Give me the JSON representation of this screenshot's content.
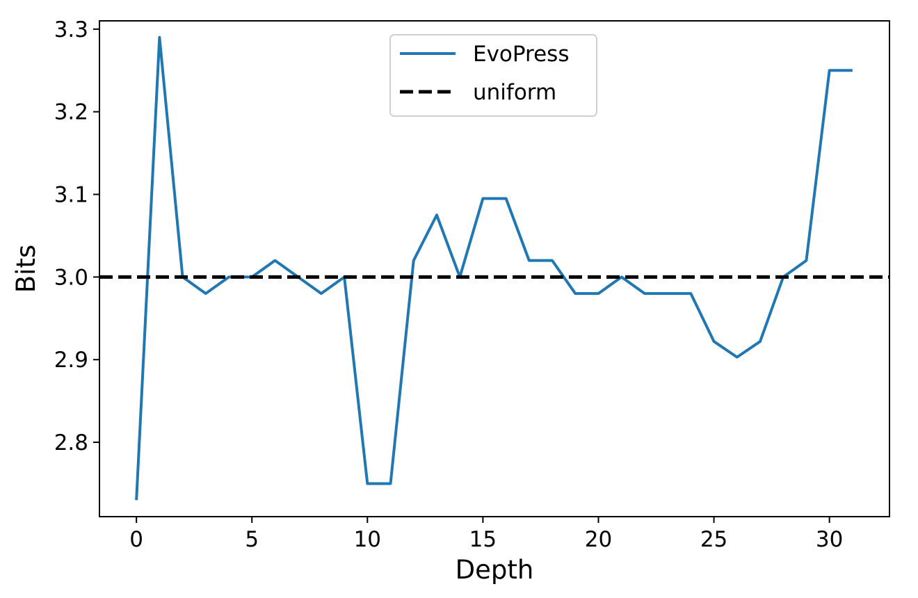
{
  "chart_data": {
    "type": "line",
    "title": "",
    "xlabel": "Depth",
    "ylabel": "Bits",
    "xlim": [
      -1.6,
      32.6
    ],
    "ylim": [
      2.71,
      3.31
    ],
    "xticks": [
      0,
      5,
      10,
      15,
      20,
      25,
      30
    ],
    "xtick_labels": [
      "0",
      "5",
      "10",
      "15",
      "20",
      "25",
      "30"
    ],
    "yticks": [
      2.8,
      2.9,
      3.0,
      3.1,
      3.2,
      3.3
    ],
    "ytick_labels": [
      "2.8",
      "2.9",
      "3.0",
      "3.1",
      "3.2",
      "3.3"
    ],
    "grid": false,
    "legend_position": "top-center",
    "series": [
      {
        "name": "EvoPress",
        "style": "solid",
        "color": "#1f77b4",
        "x": [
          0,
          1,
          2,
          3,
          4,
          5,
          6,
          7,
          8,
          9,
          10,
          11,
          12,
          13,
          14,
          15,
          16,
          17,
          18,
          19,
          20,
          21,
          22,
          23,
          24,
          25,
          26,
          27,
          28,
          29,
          30,
          31
        ],
        "y": [
          2.73,
          3.29,
          3.0,
          2.98,
          3.0,
          3.0,
          3.02,
          3.0,
          2.98,
          3.0,
          2.75,
          2.75,
          3.02,
          3.075,
          3.0,
          3.095,
          3.095,
          3.02,
          3.02,
          2.98,
          2.98,
          3.0,
          2.98,
          2.98,
          2.98,
          2.922,
          2.903,
          2.922,
          3.0,
          3.02,
          3.25,
          3.25
        ]
      },
      {
        "name": "uniform",
        "style": "dashed",
        "color": "#000000",
        "x": [
          -1.6,
          32.6
        ],
        "y": [
          3.0,
          3.0
        ]
      }
    ]
  }
}
